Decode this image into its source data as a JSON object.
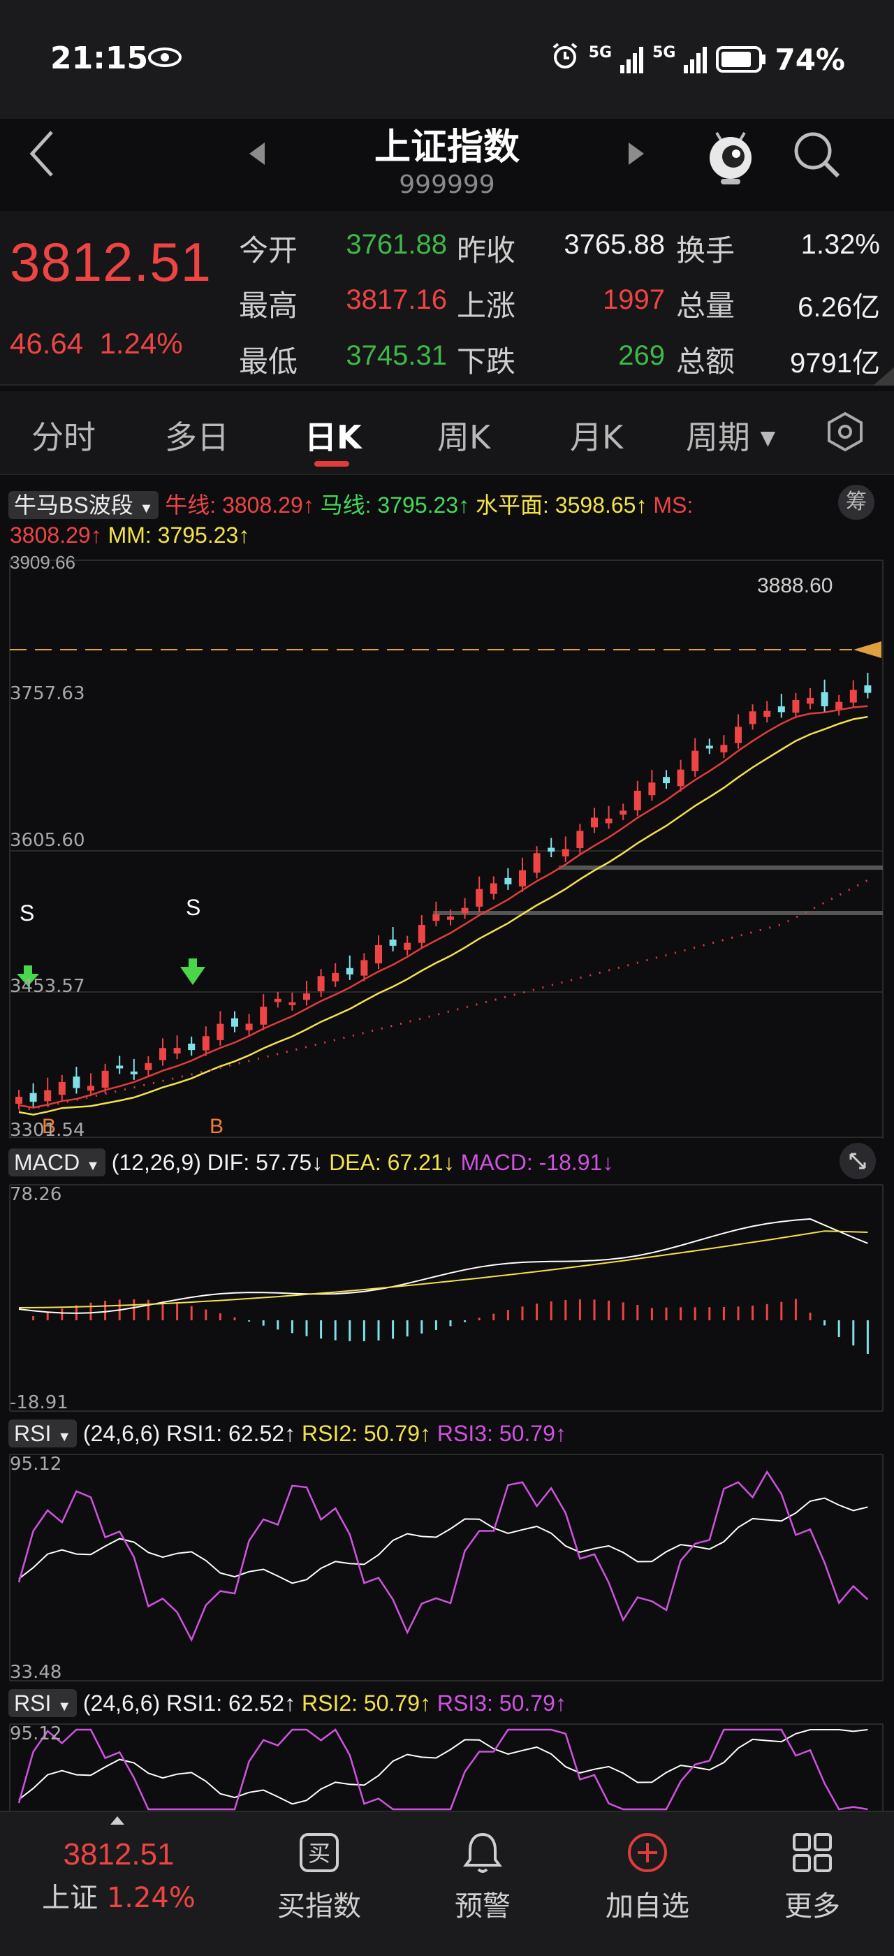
{
  "status_bar": {
    "time": "21:15",
    "signal_1": "5G",
    "signal_2": "5G",
    "battery": "74%"
  },
  "nav": {
    "title": "上证指数",
    "code": "999999"
  },
  "quote": {
    "price": "3812.51",
    "change": "46.64",
    "change_pct": "1.24%",
    "rows": [
      {
        "l1": "今开",
        "v1": "3761.88",
        "l2": "昨收",
        "v2": "3765.88",
        "l3": "换手",
        "v3": "1.32%"
      },
      {
        "l1": "最高",
        "v1": "3817.16",
        "l2": "上涨",
        "v2": "1997",
        "l3": "总量",
        "v3": "6.26亿"
      },
      {
        "l1": "最低",
        "v1": "3745.31",
        "l2": "下跌",
        "v2": "269",
        "l3": "总额",
        "v3": "9791亿"
      }
    ]
  },
  "tabs": [
    "分时",
    "多日",
    "日K",
    "周K",
    "月K",
    "周期"
  ],
  "active_tab": "日K",
  "main_indicator": {
    "selector": "牛马BS波段",
    "line1": "牛线: 3808.29↑",
    "line2": "马线: 3795.23↑",
    "line3": "水平面: 3598.65↑",
    "line4": "MS:",
    "line5": "3808.29↑",
    "line6": "MM: 3795.23↑",
    "chip_button": "筹"
  },
  "kline": {
    "y_labels": [
      "3909.66",
      "3757.63",
      "3605.60",
      "3453.57",
      "3301.54"
    ],
    "max_label": "3888.60",
    "signals": [
      {
        "text": "S"
      },
      {
        "text": "S"
      },
      {
        "text": "B"
      },
      {
        "text": "B"
      }
    ]
  },
  "macd": {
    "selector": "MACD",
    "params": "(12,26,9)",
    "dif": "DIF: 57.75↓",
    "dea": "DEA: 67.21↓",
    "macd": "MACD: -18.91↓",
    "y_top": "78.26",
    "y_bottom": "-18.91"
  },
  "rsi1": {
    "selector": "RSI",
    "params": "(24,6,6)",
    "rsi1": "RSI1: 62.52↑",
    "rsi2": "RSI2: 50.79↑",
    "rsi3": "RSI3: 50.79↑",
    "y_top": "95.12",
    "y_bottom": "33.48"
  },
  "rsi2": {
    "selector": "RSI",
    "params": "(24,6,6)",
    "rsi1": "RSI1: 62.52↑",
    "rsi2": "RSI2: 50.79↑",
    "rsi3": "RSI3: 50.79↑",
    "y_top": "95.12"
  },
  "bottom_bar": {
    "price": "3812.51",
    "name": "上证",
    "pct": "1.24%",
    "buy_icon_char": "买",
    "items": [
      "买指数",
      "预警",
      "加自选",
      "更多"
    ]
  },
  "colors": {
    "up": "#ef4444",
    "down": "#7fe0e8",
    "accent": "#e23b3b",
    "ma_yellow": "#f4e24a"
  }
}
